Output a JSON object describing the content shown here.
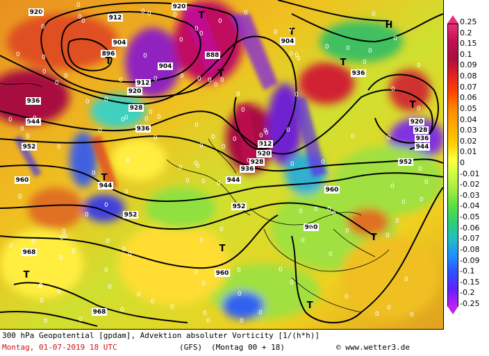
{
  "map": {
    "isohypse_labels": [
      "920",
      "912",
      "904",
      "896",
      "888",
      "920",
      "936",
      "944",
      "952",
      "960",
      "968",
      "920",
      "928",
      "936",
      "944",
      "952",
      "960",
      "904",
      "912",
      "920",
      "928",
      "936",
      "944",
      "952",
      "960",
      "920",
      "928",
      "936",
      "944",
      "952",
      "904",
      "912",
      "960",
      "968",
      "936"
    ],
    "pressure_symbols": [
      "T",
      "T",
      "T",
      "T",
      "T",
      "T",
      "T",
      "T",
      "T",
      "T",
      "H",
      "T"
    ],
    "zero_label": "0"
  },
  "legend": {
    "scale": [
      "0.25",
      "0.2",
      "0.15",
      "0.1",
      "0.09",
      "0.08",
      "0.07",
      "0.06",
      "0.05",
      "0.04",
      "0.03",
      "0.02",
      "0.01",
      "0",
      "-0.01",
      "-0.02",
      "-0.03",
      "-0.04",
      "-0.05",
      "-0.06",
      "-0.07",
      "-0.08",
      "-0.09",
      "-0.1",
      "-0.15",
      "-0.2",
      "-0.25"
    ],
    "colors": {
      "top": "#e8307a",
      "bottom": "#c020f0"
    }
  },
  "footer": {
    "description": "300 hPa Geopotential [gpdam], Advektion absoluter Vorticity [1/(h*h)]",
    "date": "Montag, 01-07-2019  18 UTC",
    "model": "(GFS)",
    "run": "(Montag 00 + 18)",
    "credit": "www.wetter3.de"
  }
}
